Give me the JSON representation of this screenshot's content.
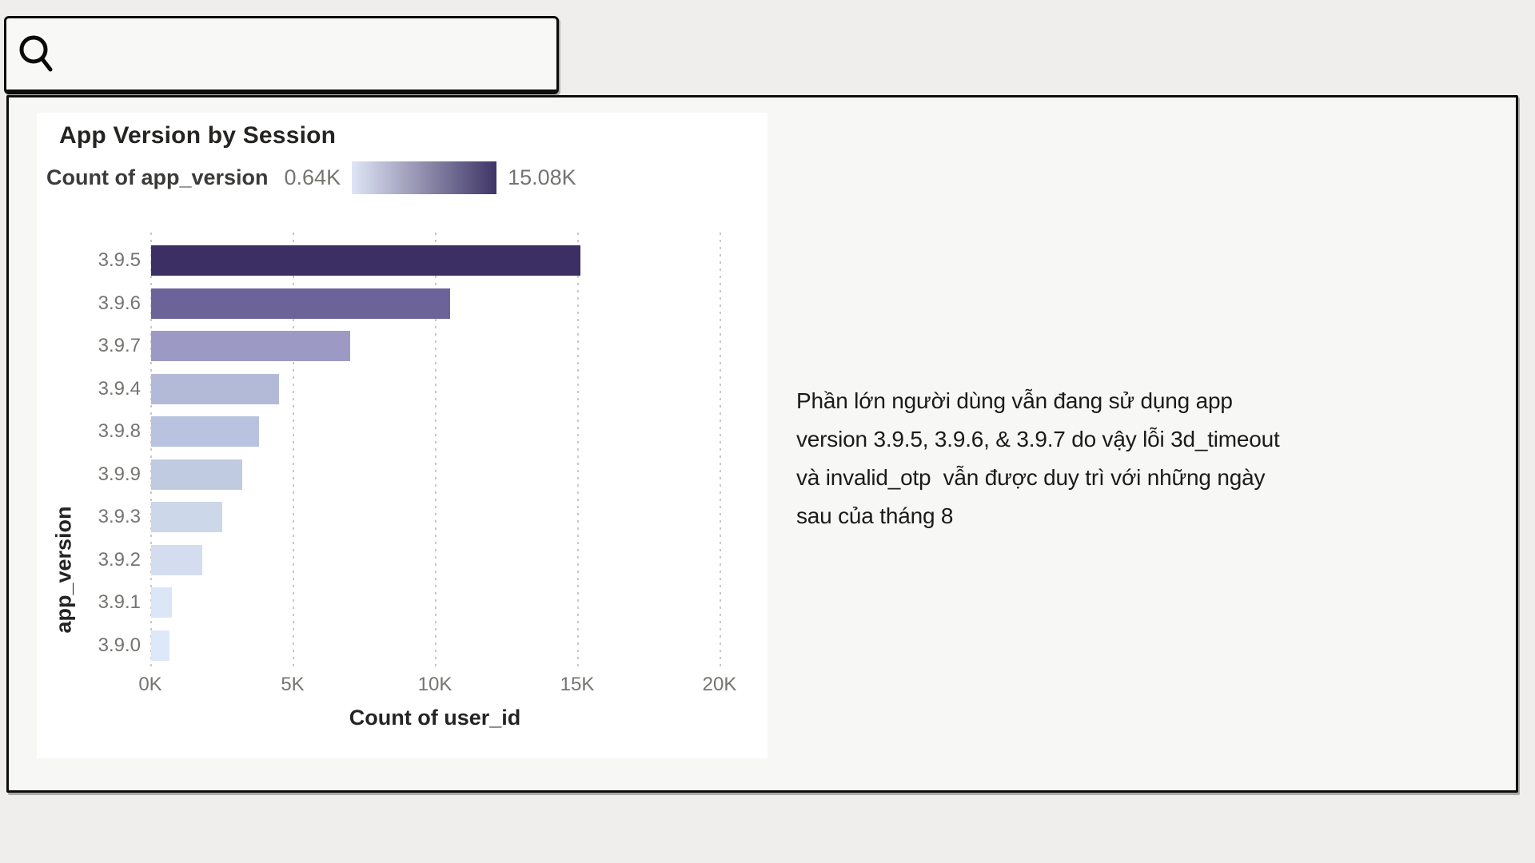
{
  "search": {
    "value": ""
  },
  "note": {
    "lines": [
      "Phần lớn người dùng vẫn đang sử dụng app",
      "version 3.9.5, 3.9.6, & 3.9.7 do vậy lỗi 3d_timeout",
      "và invalid_otp  vẫn được duy trì với những ngày",
      "sau của tháng 8"
    ]
  },
  "chart_data": {
    "type": "bar",
    "orientation": "horizontal",
    "title": "App Version by Session",
    "xlabel": "Count of user_id",
    "ylabel": "app_version",
    "legend": {
      "label": "Count of app_version",
      "min_label": "0.64K",
      "max_label": "15.08K",
      "gradient_start": "#dfe5f4",
      "gradient_end": "#3f3566",
      "position": "top"
    },
    "categories": [
      "3.9.5",
      "3.9.6",
      "3.9.7",
      "3.9.4",
      "3.9.8",
      "3.9.9",
      "3.9.3",
      "3.9.2",
      "3.9.1",
      "3.9.0"
    ],
    "values_k": [
      15.08,
      10.5,
      7.0,
      4.5,
      3.8,
      3.2,
      2.5,
      1.8,
      0.73,
      0.64
    ],
    "bar_colors": [
      "#3c2f63",
      "#6c6498",
      "#9c9ac5",
      "#b3bad8",
      "#b9c2de",
      "#c0cae1",
      "#ccd7ea",
      "#d3ddef",
      "#dbe7f7",
      "#dde9f8"
    ],
    "x_tick_labels": [
      "0K",
      "5K",
      "10K",
      "15K",
      "20K"
    ],
    "x_tick_values": [
      0,
      5,
      10,
      15,
      20
    ],
    "xlim": [
      0,
      20
    ],
    "grid": "dotted-vertical"
  },
  "colors": {
    "page_bg": "#efeeec",
    "panel_bg": "#f7f7f5",
    "card_bg": "#ffffff",
    "border": "#0d0d0d",
    "title_text": "#252423",
    "tick_text": "#767471",
    "note_text": "#1b1b1b"
  }
}
